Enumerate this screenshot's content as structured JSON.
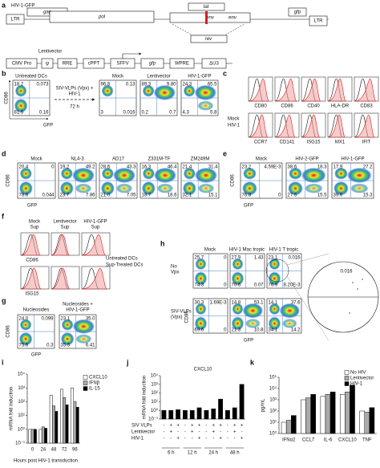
{
  "letters": [
    "a",
    "b",
    "c",
    "d",
    "e",
    "f",
    "g",
    "h",
    "i",
    "j",
    "k"
  ],
  "a": {
    "hiv_label": "HIV-1-GFP",
    "hiv_genes": [
      "LTR",
      "gag",
      "pol",
      "tat",
      "env",
      "rev",
      "gfp",
      "LTR"
    ],
    "lenti_label": "Lentivector",
    "lenti_parts": [
      "CMV Pro",
      "ψ",
      "RRE",
      "cPPT",
      "SFFV",
      "gfp",
      "WPRE",
      "ΔU3"
    ]
  },
  "b": {
    "untreated": {
      "title": "Untreated DCs",
      "q": [
        "18.2",
        "0.073",
        "81.6",
        "0.16"
      ]
    },
    "arrow_text": [
      "SIV-VLPs (Vpx) +",
      "HIV-1"
    ],
    "arrow_time": "72 h",
    "plots": [
      {
        "title": "Mock",
        "q": [
          "96.8",
          "0.13",
          "3",
          "0.016"
        ]
      },
      {
        "title": "Lentivector",
        "q": [
          "89.3",
          "9.80",
          "0.2",
          "0.7"
        ]
      },
      {
        "title": "HIV-1-GFP",
        "q": [
          "24.3",
          "65.5",
          "4.3",
          "5.8"
        ]
      }
    ],
    "y_label": "CD86",
    "x_label": "GFP"
  },
  "c": {
    "markers_top": [
      "CD80",
      "CD86",
      "CD40",
      "HLA-DR",
      "CD83"
    ],
    "markers_bottom": [
      "CCR7",
      "CD141",
      "ISG15",
      "MX1",
      "IFIT"
    ],
    "legend": [
      "Mock",
      "HIV-1"
    ]
  },
  "d": {
    "plots": [
      {
        "title": "Mock",
        "q": [
          "20.4",
          "0",
          "78.6",
          "0.044"
        ]
      },
      {
        "title": "NL4-3",
        "q": [
          "19.2",
          "49.2",
          "23.7",
          "7.86"
        ]
      },
      {
        "title": "AD17",
        "q": [
          "28.6",
          "43.3",
          "21.0",
          "7.05"
        ]
      },
      {
        "title": "Z331M-TF",
        "q": [
          "16.3",
          "46.4",
          "18.7",
          "18.6"
        ]
      },
      {
        "title": "ZM249M",
        "q": [
          "21.4",
          "31.4",
          "32.1",
          "15.1"
        ]
      }
    ],
    "y_label": "CD86",
    "x_label": "GFP"
  },
  "e": {
    "plots": [
      {
        "title": "Mock",
        "q": [
          "23.2",
          "4.59E-3",
          "76.8",
          "0"
        ]
      },
      {
        "title": "HIV-2-GFP",
        "q": [
          "38.6",
          "18.3",
          "27.6",
          "15.5"
        ]
      },
      {
        "title": "HIV-1-GFP",
        "q": [
          "17.9",
          "27.2",
          "39.6",
          "15.3"
        ]
      }
    ],
    "y_label": "CD86",
    "x_label": "GFP"
  },
  "f": {
    "titles": [
      [
        "Mock",
        "Sup"
      ],
      [
        "Lentivector",
        "Sup"
      ],
      [
        "HIV-1-GFP",
        "Sup"
      ]
    ],
    "markers": [
      "CD86",
      "ISG15"
    ],
    "legend": [
      "Untreated DCs",
      "Sup-Treated DCs"
    ]
  },
  "g": {
    "plots": [
      {
        "title": [
          "Nucleosides"
        ],
        "q": [
          "24.0",
          "0.099",
          "75.6",
          "0.3"
        ]
      },
      {
        "title": [
          "Nucleosides +",
          "HIV-1-GFP"
        ],
        "q": [
          "23.1",
          "35.0",
          "35.5",
          "6.41"
        ]
      }
    ],
    "y_label": "CD86",
    "x_label": "GFP"
  },
  "h": {
    "titles": [
      "Mock",
      "HIV-1 Mac tropic",
      "HIV-1 T tropic"
    ],
    "rows": [
      [
        "No",
        "Vpx"
      ],
      [
        "SIV-VLPs",
        "(Vpx)"
      ]
    ],
    "plots": [
      {
        "q": [
          "25.7",
          "0",
          "74.3",
          "0"
        ]
      },
      {
        "q": [
          "27.9",
          "1.43",
          "70.6",
          "0.07"
        ]
      },
      {
        "q": [
          "23.1",
          "0.016",
          "76.9",
          "8.20E-3"
        ]
      },
      {
        "q": [
          "30.3",
          "1.69E-3",
          "69.6",
          "0"
        ]
      },
      {
        "q": [
          "14.8",
          "53.1",
          "21.3",
          "10.8"
        ]
      },
      {
        "q": [
          "14.1",
          "37.6",
          "34.1",
          "14.2"
        ]
      }
    ],
    "zoom_value": "0.016",
    "y_label": "CD86",
    "x_label": "GFP"
  },
  "chart_data": [
    {
      "type": "bar",
      "y_label": "mRNA fold induction",
      "x_label": "Hours post HIV-1 transduction",
      "yscale": "log",
      "categories": [
        "0",
        "24",
        "48",
        "72",
        "96"
      ],
      "series": [
        {
          "name": "CXCL10",
          "color": "#ffffff",
          "values": [
            1,
            1,
            300,
            800,
            1000
          ]
        },
        {
          "name": "IFNβ",
          "color": "#aaaaaa",
          "values": [
            1,
            1.5,
            50,
            200,
            100
          ]
        },
        {
          "name": "IL-15",
          "color": "#000000",
          "values": [
            1,
            1.2,
            20,
            60,
            40
          ]
        }
      ],
      "ylim": [
        0.1,
        10000
      ],
      "yticks": [
        {
          "value": 0.1,
          "label": "10⁻¹"
        },
        {
          "value": 1,
          "label": "10⁰"
        },
        {
          "value": 10,
          "label": "10¹"
        },
        {
          "value": 100,
          "label": "10²"
        },
        {
          "value": 1000,
          "label": "10³"
        },
        {
          "value": 10000,
          "label": "10⁴"
        }
      ]
    },
    {
      "type": "bar",
      "title": "CXCL10",
      "y_label": "mRNA fold induction",
      "yscale": "log",
      "color": "#000000",
      "values": [
        1,
        1,
        1.2,
        1,
        1,
        2,
        1,
        1.5,
        20,
        1,
        2,
        1000
      ],
      "rows": [
        {
          "name": "SIV VLPs",
          "signs": [
            "-",
            "+",
            "+",
            "-",
            "+",
            "+",
            "-",
            "+",
            "+",
            "-",
            "+",
            "+"
          ]
        },
        {
          "name": "Lentivector",
          "signs": [
            "-",
            "+",
            "-",
            "-",
            "+",
            "-",
            "-",
            "+",
            "-",
            "-",
            "+",
            "-"
          ]
        },
        {
          "name": "HIV-1",
          "signs": [
            "-",
            "-",
            "+",
            "-",
            "-",
            "+",
            "-",
            "-",
            "+",
            "-",
            "-",
            "+"
          ]
        }
      ],
      "groups": [
        "6 h",
        "12 h",
        "24 h",
        "48 h"
      ],
      "ylim": [
        0.1,
        10000
      ],
      "yticks": [
        {
          "value": 0.1,
          "label": "10⁻¹"
        },
        {
          "value": 1,
          "label": "10⁰"
        },
        {
          "value": 10,
          "label": "10¹"
        },
        {
          "value": 100,
          "label": "10²"
        },
        {
          "value": 1000,
          "label": "10³"
        },
        {
          "value": 10000,
          "label": "10⁴"
        }
      ]
    },
    {
      "type": "bar",
      "y_label": "pg/mL",
      "yscale": "log",
      "categories": [
        "IFNα2",
        "CCL7",
        "IL-6",
        "CXCL10",
        "TNF"
      ],
      "series": [
        {
          "name": "No HIV",
          "color": "#ffffff",
          "values": [
            10,
            1000,
            2000,
            3000,
            100
          ]
        },
        {
          "name": "Lentivector",
          "color": "#aaaaaa",
          "values": [
            15,
            1500,
            3000,
            5000,
            80
          ]
        },
        {
          "name": "HIV-1",
          "color": "#000000",
          "values": [
            40,
            3000,
            5000,
            20000,
            200
          ]
        }
      ],
      "ylim": [
        1,
        100000
      ],
      "yticks": [
        {
          "value": 1,
          "label": "10⁰"
        },
        {
          "value": 10,
          "label": "10¹"
        },
        {
          "value": 100,
          "label": "10²"
        },
        {
          "value": 1000,
          "label": "10³"
        },
        {
          "value": 10000,
          "label": "10⁴"
        },
        {
          "value": 100000,
          "label": "10⁵"
        }
      ]
    }
  ]
}
